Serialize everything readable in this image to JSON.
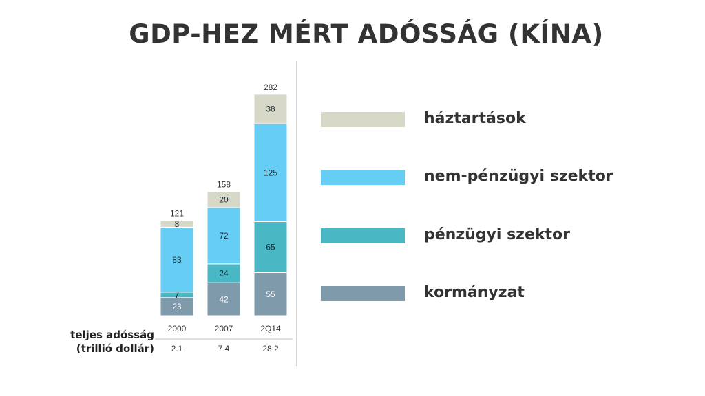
{
  "title": "GDP-HEZ MÉRT ADÓSSÁG (KÍNA)",
  "chart_data": {
    "type": "bar",
    "stacked": true,
    "title": "GDP-HEZ MÉRT ADÓSSÁG (KÍNA)",
    "categories": [
      "2000",
      "2007",
      "2Q14"
    ],
    "totals": [
      121,
      158,
      282
    ],
    "series": [
      {
        "name": "kormányzat",
        "values": [
          23,
          42,
          55
        ],
        "color": "#7f9aab",
        "label_color": "#ffffff"
      },
      {
        "name": "pénzügyi szektor",
        "values": [
          7,
          24,
          65
        ],
        "color": "#4ab8c4",
        "label_color": "#1a2a33"
      },
      {
        "name": "nem-pénzügyi szektor",
        "values": [
          83,
          72,
          125
        ],
        "color": "#66cdf5",
        "label_color": "#1a2a33"
      },
      {
        "name": "háztartások",
        "values": [
          8,
          20,
          38
        ],
        "color": "#d8d8c8",
        "label_color": "#1a2a33"
      }
    ],
    "legend_order": [
      "háztartások",
      "nem-pénzügyi szektor",
      "pénzügyi szektor",
      "kormányzat"
    ],
    "total_debt": {
      "label_line1": "teljes adósság",
      "label_line2": "(trillió dollár)",
      "values": [
        "2.1",
        "7.4",
        "28.2"
      ]
    },
    "ylim": [
      0,
      282
    ],
    "grid": false,
    "legend_position": "right"
  }
}
